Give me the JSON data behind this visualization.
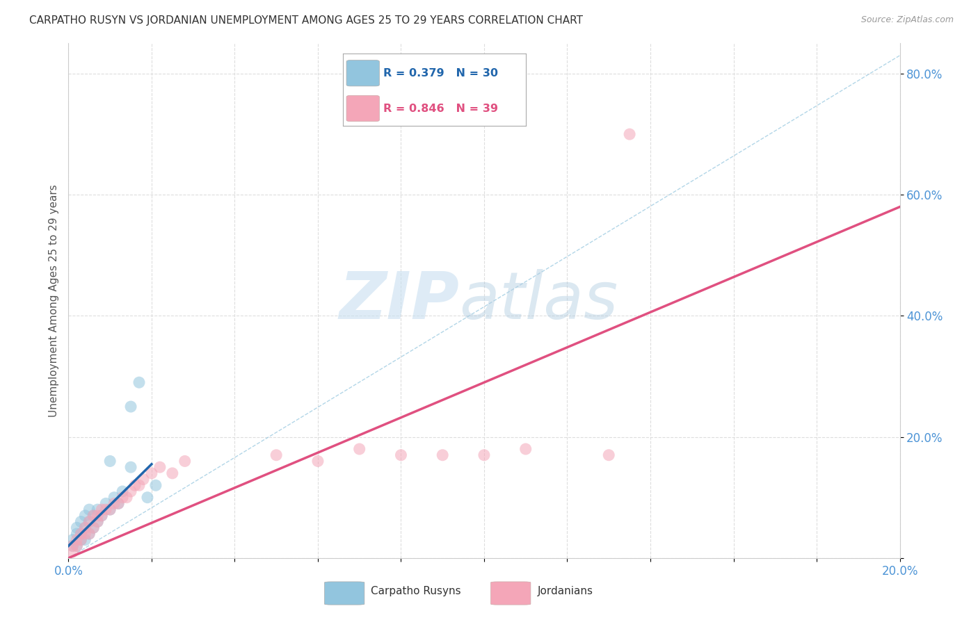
{
  "title": "CARPATHO RUSYN VS JORDANIAN UNEMPLOYMENT AMONG AGES 25 TO 29 YEARS CORRELATION CHART",
  "source": "Source: ZipAtlas.com",
  "ylabel": "Unemployment Among Ages 25 to 29 years",
  "xlim": [
    0.0,
    0.2
  ],
  "ylim": [
    0.0,
    0.85
  ],
  "xticks": [
    0.0,
    0.02,
    0.04,
    0.06,
    0.08,
    0.1,
    0.12,
    0.14,
    0.16,
    0.18,
    0.2
  ],
  "yticks": [
    0.0,
    0.2,
    0.4,
    0.6,
    0.8
  ],
  "blue_scatter_x": [
    0.001,
    0.001,
    0.002,
    0.002,
    0.002,
    0.003,
    0.003,
    0.003,
    0.004,
    0.004,
    0.004,
    0.005,
    0.005,
    0.005,
    0.006,
    0.006,
    0.007,
    0.007,
    0.008,
    0.009,
    0.01,
    0.011,
    0.012,
    0.013,
    0.015,
    0.017,
    0.019,
    0.021,
    0.01,
    0.015
  ],
  "blue_scatter_y": [
    0.02,
    0.03,
    0.02,
    0.04,
    0.05,
    0.03,
    0.04,
    0.06,
    0.03,
    0.05,
    0.07,
    0.04,
    0.06,
    0.08,
    0.05,
    0.07,
    0.06,
    0.08,
    0.07,
    0.09,
    0.08,
    0.1,
    0.09,
    0.11,
    0.25,
    0.29,
    0.1,
    0.12,
    0.16,
    0.15
  ],
  "pink_scatter_x": [
    0.001,
    0.001,
    0.002,
    0.002,
    0.003,
    0.003,
    0.004,
    0.004,
    0.005,
    0.005,
    0.006,
    0.006,
    0.007,
    0.007,
    0.008,
    0.008,
    0.009,
    0.01,
    0.011,
    0.012,
    0.013,
    0.014,
    0.015,
    0.016,
    0.017,
    0.018,
    0.02,
    0.022,
    0.025,
    0.028,
    0.05,
    0.06,
    0.07,
    0.08,
    0.09,
    0.1,
    0.11,
    0.13,
    0.135
  ],
  "pink_scatter_y": [
    0.01,
    0.02,
    0.02,
    0.03,
    0.03,
    0.04,
    0.04,
    0.05,
    0.04,
    0.06,
    0.05,
    0.07,
    0.06,
    0.07,
    0.07,
    0.08,
    0.08,
    0.08,
    0.09,
    0.09,
    0.1,
    0.1,
    0.11,
    0.12,
    0.12,
    0.13,
    0.14,
    0.15,
    0.14,
    0.16,
    0.17,
    0.16,
    0.18,
    0.17,
    0.17,
    0.17,
    0.18,
    0.17,
    0.7
  ],
  "blue_line_x": [
    0.0,
    0.02
  ],
  "blue_line_y": [
    0.02,
    0.155
  ],
  "pink_line_x": [
    0.0,
    0.2
  ],
  "pink_line_y": [
    0.0,
    0.58
  ],
  "diagonal_line_x": [
    0.0,
    0.2
  ],
  "diagonal_line_y": [
    0.0,
    0.83
  ],
  "blue_color": "#92c5de",
  "pink_color": "#f4a6b8",
  "blue_line_color": "#2166ac",
  "pink_line_color": "#e05080",
  "diagonal_color": "#92c5de",
  "watermark_zip": "ZIP",
  "watermark_atlas": "atlas",
  "legend_r_blue": "R = 0.379",
  "legend_n_blue": "N = 30",
  "legend_r_pink": "R = 0.846",
  "legend_n_pink": "N = 39",
  "legend_label_blue": "Carpatho Rusyns",
  "legend_label_pink": "Jordanians",
  "background_color": "#ffffff",
  "grid_color": "#dddddd",
  "title_color": "#333333",
  "axis_label_color": "#555555",
  "tick_label_color": "#4d94d6"
}
